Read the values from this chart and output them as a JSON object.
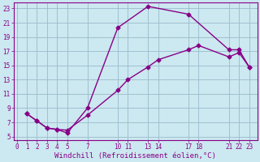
{
  "xlabel": "Windchill (Refroidissement éolien,°C)",
  "bg_color": "#cce8f0",
  "line_color": "#880088",
  "grid_color": "#99bbcc",
  "xmin": -0.3,
  "xmax": 23.8,
  "ymin": 4.5,
  "ymax": 23.8,
  "xticks": [
    0,
    1,
    2,
    3,
    4,
    5,
    7,
    10,
    11,
    13,
    14,
    17,
    18,
    21,
    22,
    23
  ],
  "yticks": [
    5,
    7,
    9,
    11,
    13,
    15,
    17,
    19,
    21,
    23
  ],
  "line1_x": [
    1,
    2,
    3,
    4,
    5,
    7,
    10,
    13,
    17,
    21,
    22,
    23
  ],
  "line1_y": [
    8.2,
    7.2,
    6.2,
    6.0,
    5.5,
    9.0,
    20.3,
    23.3,
    22.2,
    17.2,
    17.2,
    14.8
  ],
  "line2_x": [
    1,
    2,
    3,
    4,
    5,
    7,
    10,
    11,
    13,
    14,
    17,
    18,
    21,
    22,
    23
  ],
  "line2_y": [
    8.2,
    7.2,
    6.2,
    6.0,
    5.9,
    8.0,
    11.5,
    13.0,
    14.8,
    15.8,
    17.2,
    17.8,
    16.2,
    16.8,
    14.8
  ],
  "marker": "D",
  "markersize": 2.5,
  "linewidth": 1.0,
  "tick_fontsize": 5.5,
  "xlabel_fontsize": 6.5
}
